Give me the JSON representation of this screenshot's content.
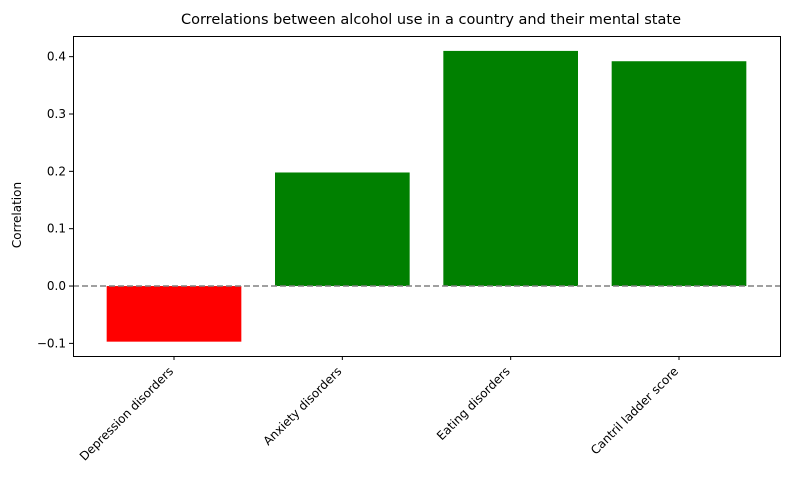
{
  "chart_data": {
    "type": "bar",
    "title": "Correlations between alcohol use in a country and their mental state",
    "xlabel": "",
    "ylabel": "Correlation",
    "categories": [
      "Depression disorders",
      "Anxiety disorders",
      "Eating disorders",
      "Cantril ladder score"
    ],
    "values": [
      -0.097,
      0.198,
      0.41,
      0.392
    ],
    "ylim": [
      -0.122,
      0.436
    ],
    "yticks": [
      -0.1,
      0.0,
      0.1,
      0.2,
      0.3,
      0.4
    ],
    "ytick_labels": [
      "−0.1",
      "0.0",
      "0.1",
      "0.2",
      "0.3",
      "0.4"
    ],
    "colors": {
      "positive": "#008000",
      "negative": "#ff0000",
      "zero_line": "#808080"
    },
    "reference_line": {
      "y": 0,
      "style": "dashed"
    },
    "grid": false,
    "legend": "none"
  }
}
